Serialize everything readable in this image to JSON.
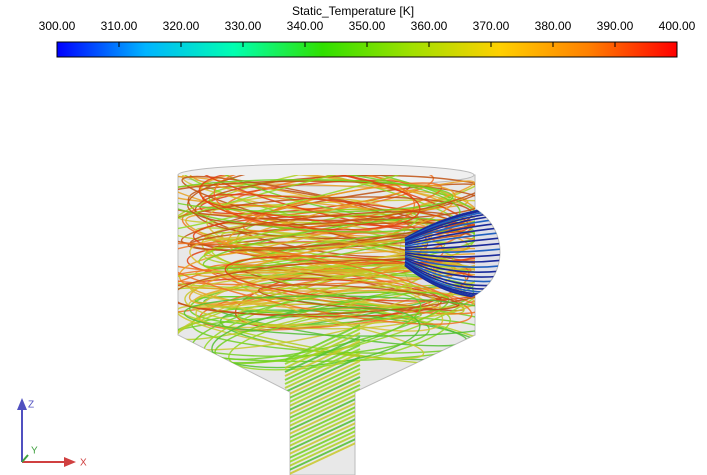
{
  "colorbar": {
    "title": "Static_Temperature [K]",
    "lim": [
      300,
      400
    ],
    "ticks": [
      {
        "value": 300,
        "label": "300.00"
      },
      {
        "value": 310,
        "label": "310.00"
      },
      {
        "value": 320,
        "label": "320.00"
      },
      {
        "value": 330,
        "label": "330.00"
      },
      {
        "value": 340,
        "label": "340.00"
      },
      {
        "value": 350,
        "label": "350.00"
      },
      {
        "value": 360,
        "label": "360.00"
      },
      {
        "value": 370,
        "label": "370.00"
      },
      {
        "value": 380,
        "label": "380.00"
      },
      {
        "value": 390,
        "label": "390.00"
      },
      {
        "value": 400,
        "label": "400.00"
      }
    ],
    "colormap": [
      "#0000ff",
      "#00b4ff",
      "#00ffb0",
      "#30e000",
      "#a0e000",
      "#ffd000",
      "#ff8000",
      "#ff0000"
    ]
  },
  "axes_triad": {
    "z": "Z",
    "y": "Y",
    "x": "X"
  }
}
